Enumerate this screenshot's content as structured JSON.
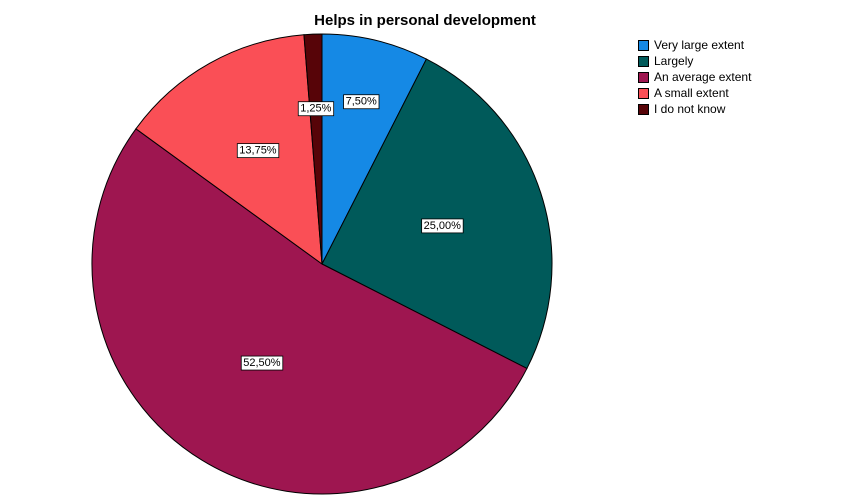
{
  "chart_data": {
    "type": "pie",
    "title": "Helps in personal development",
    "categories": [
      "Very large extent",
      "Largely",
      "An average extent",
      "A small extent",
      "I do not know"
    ],
    "values": [
      7.5,
      25.0,
      52.5,
      13.75,
      1.25
    ],
    "value_labels": [
      "7,50%",
      "25,00%",
      "52,50%",
      "13,75%",
      "1,25%"
    ],
    "colors": [
      "#1589e5",
      "#005a5a",
      "#9e1650",
      "#fa4f56",
      "#570408"
    ],
    "start_angle": "12 o'clock",
    "direction": "clockwise",
    "legend_position": "top-right"
  }
}
